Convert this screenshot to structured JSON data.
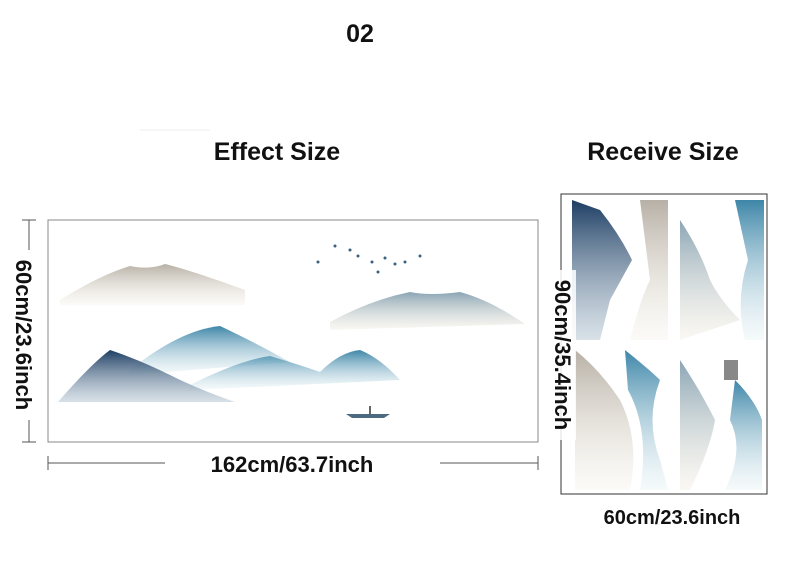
{
  "page_number": "02",
  "effect": {
    "title": "Effect Size",
    "height": "60cm/23.6inch",
    "width": "162cm/63.7inch"
  },
  "receive": {
    "title": "Receive Size",
    "height": "90cm/35.4inch",
    "width": "60cm/23.6inch"
  }
}
